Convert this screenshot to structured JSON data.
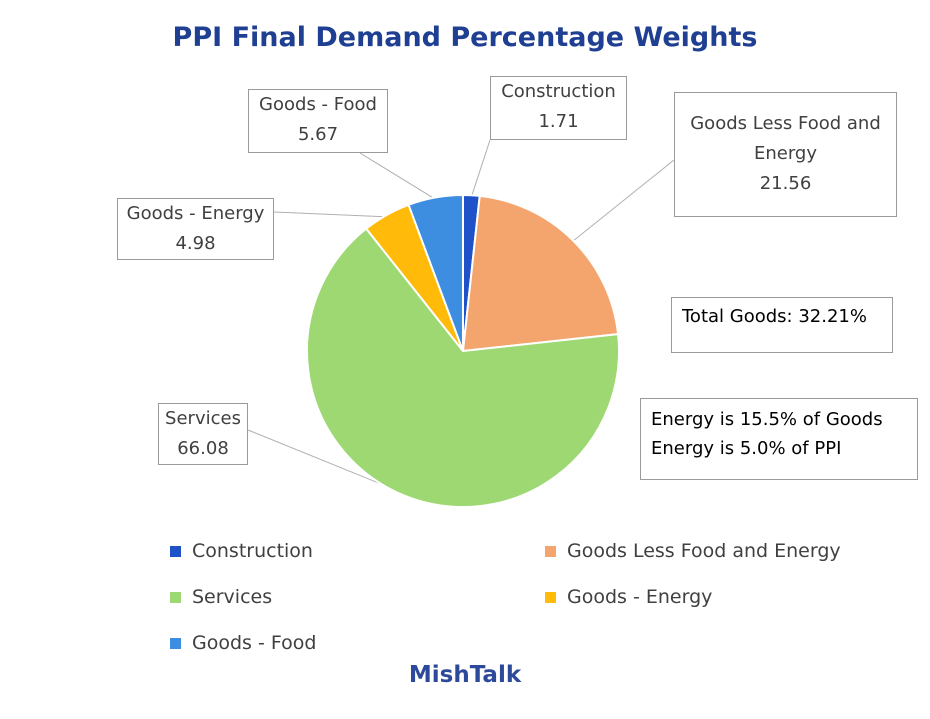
{
  "chart_data": {
    "type": "pie",
    "title": "PPI Final Demand Percentage Weights",
    "slices": [
      {
        "label": "Construction",
        "value": 1.71,
        "value_text": "1.71",
        "color": "#1F52C9"
      },
      {
        "label": "Goods Less Food and Energy",
        "value": 21.56,
        "value_text": "21.56",
        "color": "#F4A56E"
      },
      {
        "label": "Services",
        "value": 66.08,
        "value_text": "66.08",
        "color": "#9DD873"
      },
      {
        "label": "Goods - Energy",
        "value": 4.98,
        "value_text": "4.98",
        "color": "#FFBA0A"
      },
      {
        "label": "Goods - Food",
        "value": 5.67,
        "value_text": "5.67",
        "color": "#3D8DE0"
      }
    ],
    "legend": [
      "Construction",
      "Goods Less Food and Energy",
      "Services",
      "Goods - Energy",
      "Goods - Food"
    ],
    "legend_position": "bottom",
    "annotations": [
      "Total Goods: 32.21%",
      "Energy is 15.5% of Goods",
      "Energy is 5.0% of PPI"
    ]
  },
  "callouts": {
    "construction": {
      "label": "Construction",
      "value": "1.71"
    },
    "glfe": {
      "label_line1": "Goods Less Food and",
      "label_line2": "Energy",
      "value": "21.56"
    },
    "services": {
      "label": "Services",
      "value": "66.08"
    },
    "energy": {
      "label": "Goods - Energy",
      "value": "4.98"
    },
    "food": {
      "label": "Goods - Food",
      "value": "5.67"
    }
  },
  "brand": "MishTalk"
}
